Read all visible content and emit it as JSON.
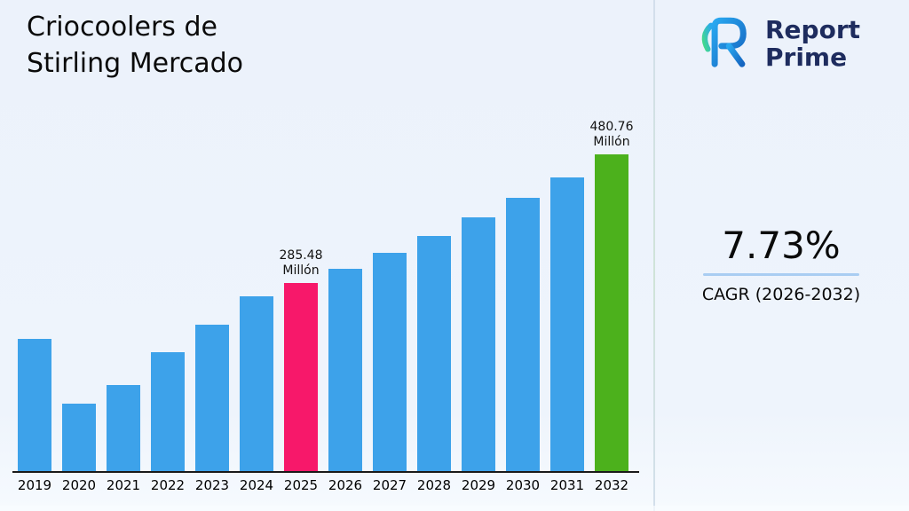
{
  "title": {
    "line1": "Criocoolers de",
    "line2": "Stirling Mercado"
  },
  "logo": {
    "line1": "Report",
    "line2": "Prime",
    "text_color": "#1e2c5e",
    "gradient_start": "#29a8f0",
    "gradient_end": "#43d98c"
  },
  "stat": {
    "value": "7.73%",
    "label": "CAGR (2026-2032)",
    "underline_color": "#a9cdf2"
  },
  "chart_data": {
    "type": "bar",
    "title": "Criocoolers de Stirling Mercado",
    "unit": "Millón",
    "categories": [
      "2019",
      "2020",
      "2021",
      "2022",
      "2023",
      "2024",
      "2025",
      "2026",
      "2027",
      "2028",
      "2029",
      "2030",
      "2031",
      "2032"
    ],
    "values": [
      200,
      103,
      130,
      180,
      222,
      265,
      285.48,
      307.55,
      331.32,
      356.93,
      384.52,
      414.24,
      446.26,
      480.76
    ],
    "values_note": "only 2025 and 2032 labeled on chart; other values estimated from bar heights",
    "ylim": [
      0,
      500
    ],
    "grid": false,
    "bar_color": "#3da2ea",
    "axis_color": "#1a1a1a",
    "highlights": [
      {
        "year": "2025",
        "value_label": "285.48",
        "unit": "Millón",
        "color": "#f7186a"
      },
      {
        "year": "2032",
        "value_label": "480.76",
        "unit": "Millón",
        "color": "#4cb11c"
      }
    ]
  }
}
